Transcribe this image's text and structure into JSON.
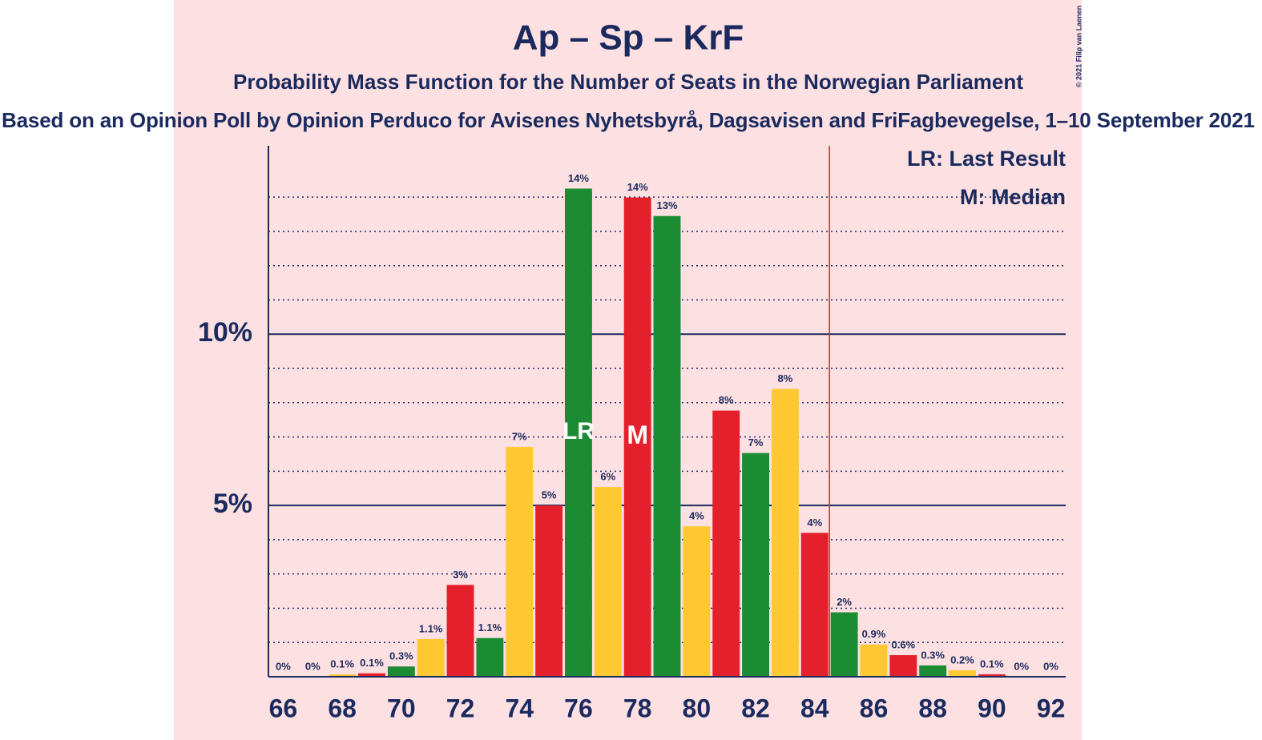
{
  "chart_data": {
    "type": "bar",
    "title": "Ap – Sp – KrF",
    "subtitle": "Probability Mass Function for the Number of Seats in the Norwegian Parliament",
    "caption": "Based on an Opinion Poll by Opinion Perduco for Avisenes Nyhetsbyrå, Dagsavisen and FriFagbevegelse, 1–10 September 2021",
    "copyright": "© 2021 Filip van Laenen",
    "x": [
      66,
      67,
      68,
      69,
      70,
      71,
      72,
      73,
      74,
      75,
      76,
      77,
      78,
      79,
      80,
      81,
      82,
      83,
      84,
      85,
      86,
      87,
      88,
      89,
      90,
      91,
      92
    ],
    "values": [
      0,
      0,
      0.07,
      0.1,
      0.3,
      1.1,
      2.68,
      1.13,
      6.71,
      5.0,
      14.25,
      5.54,
      13.99,
      13.45,
      4.39,
      7.77,
      6.53,
      8.4,
      4.2,
      1.88,
      0.94,
      0.63,
      0.33,
      0.19,
      0.07,
      0,
      0
    ],
    "value_labels": [
      "0%",
      "0%",
      "0.1%",
      "0.1%",
      "0.3%",
      "1.1%",
      "3%",
      "1.1%",
      "7%",
      "5%",
      "14%",
      "6%",
      "14%",
      "13%",
      "4%",
      "8%",
      "7%",
      "8%",
      "4%",
      "2%",
      "0.9%",
      "0.6%",
      "0.3%",
      "0.2%",
      "0.1%",
      "0%",
      "0%"
    ],
    "color_cycle": [
      "#e3202b",
      "#1c8c34",
      "#fec833"
    ],
    "xlim": [
      65.5,
      92.5
    ],
    "xticks": [
      66,
      68,
      70,
      72,
      74,
      76,
      78,
      80,
      82,
      84,
      86,
      88,
      90,
      92
    ],
    "ylim": [
      0,
      15.5
    ],
    "yticks": [
      {
        "value": 5,
        "label": "5%"
      },
      {
        "value": 10,
        "label": "10%"
      }
    ],
    "minor_gridlines": [
      1,
      2,
      3,
      4,
      6,
      7,
      8,
      9,
      11,
      12,
      13,
      14
    ],
    "threshold": 84.5,
    "last_result": {
      "x": 76,
      "label": "LR"
    },
    "median": {
      "x": 78,
      "label": "M"
    },
    "legend": [
      "LR: Last Result",
      "M: Median"
    ]
  }
}
